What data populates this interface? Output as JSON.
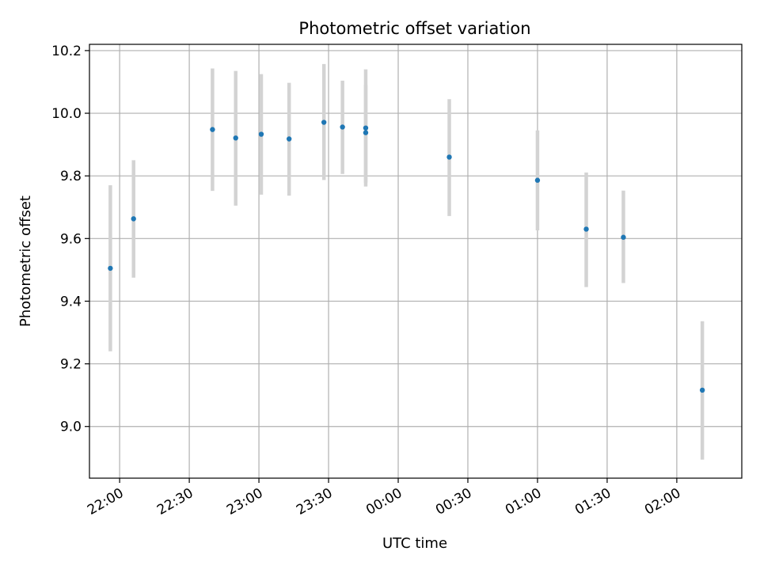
{
  "chart_data": {
    "type": "scatter",
    "title": "Photometric offset variation",
    "xlabel": "UTC time",
    "ylabel": "Photometric offset",
    "x_ticks": [
      "22:00",
      "22:30",
      "23:00",
      "23:30",
      "00:00",
      "00:30",
      "01:00",
      "01:30",
      "02:00"
    ],
    "y_ticks": [
      "9.0",
      "9.2",
      "9.4",
      "9.6",
      "9.8",
      "10.0",
      "10.2"
    ],
    "xlim": [
      "21:47",
      "02:28"
    ],
    "ylim": [
      8.835,
      10.22
    ],
    "grid": true,
    "points": [
      {
        "x": "21:56",
        "y": 9.505,
        "low": 9.24,
        "high": 9.77
      },
      {
        "x": "22:06",
        "y": 9.663,
        "low": 9.475,
        "high": 9.85
      },
      {
        "x": "22:40",
        "y": 9.948,
        "low": 9.752,
        "high": 10.143
      },
      {
        "x": "22:50",
        "y": 9.921,
        "low": 9.705,
        "high": 10.135
      },
      {
        "x": "23:01",
        "y": 9.933,
        "low": 9.74,
        "high": 10.125
      },
      {
        "x": "23:13",
        "y": 9.918,
        "low": 9.737,
        "high": 10.097
      },
      {
        "x": "23:28",
        "y": 9.971,
        "low": 9.787,
        "high": 10.157
      },
      {
        "x": "23:36",
        "y": 9.956,
        "low": 9.806,
        "high": 10.104
      },
      {
        "x": "23:46",
        "y": 9.953,
        "low": 9.766,
        "high": 10.14
      },
      {
        "x": "23:46",
        "y": 9.938,
        "low": 9.778,
        "high": 10.09
      },
      {
        "x": "00:22",
        "y": 9.86,
        "low": 9.672,
        "high": 10.045
      },
      {
        "x": "01:00",
        "y": 9.786,
        "low": 9.626,
        "high": 9.945
      },
      {
        "x": "01:21",
        "y": 9.63,
        "low": 9.445,
        "high": 9.811
      },
      {
        "x": "01:37",
        "y": 9.604,
        "low": 9.458,
        "high": 9.753
      },
      {
        "x": "02:11",
        "y": 9.116,
        "low": 8.894,
        "high": 9.336
      }
    ],
    "colors": {
      "point": "#1f77b4",
      "errorbar": "#d3d3d3",
      "grid": "#b0b0b0",
      "axis": "#000000"
    }
  }
}
